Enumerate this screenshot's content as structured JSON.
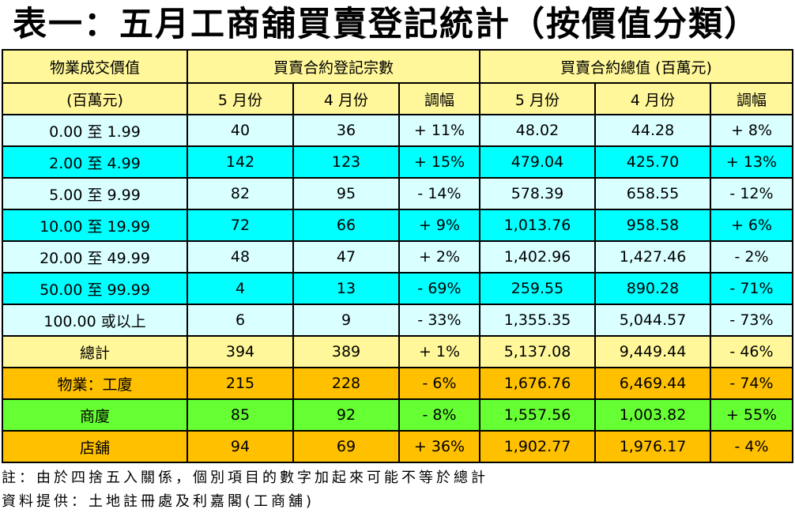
{
  "title": "表一：五月工商舖買賣登記統計（按價值分類）",
  "header": {
    "col1_line1": "物業成交價值",
    "col1_line2": "(百萬元)",
    "group_count": "買賣合約登記宗數",
    "group_value": "買賣合約總值 (百萬元)",
    "may": "5 月份",
    "apr": "4 月份",
    "change": "調幅"
  },
  "rows": [
    {
      "label": "0.00 至 1.99",
      "count_may": "40",
      "count_apr": "36",
      "count_chg": "+ 11%",
      "val_may": "48.02",
      "val_apr": "44.28",
      "val_chg": "+ 8%"
    },
    {
      "label": "2.00 至 4.99",
      "count_may": "142",
      "count_apr": "123",
      "count_chg": "+ 15%",
      "val_may": "479.04",
      "val_apr": "425.70",
      "val_chg": "+ 13%"
    },
    {
      "label": "5.00 至 9.99",
      "count_may": "82",
      "count_apr": "95",
      "count_chg": "- 14%",
      "val_may": "578.39",
      "val_apr": "658.55",
      "val_chg": "- 12%"
    },
    {
      "label": "10.00 至 19.99",
      "count_may": "72",
      "count_apr": "66",
      "count_chg": "+ 9%",
      "val_may": "1,013.76",
      "val_apr": "958.58",
      "val_chg": "+ 6%"
    },
    {
      "label": "20.00 至 49.99",
      "count_may": "48",
      "count_apr": "47",
      "count_chg": "+ 2%",
      "val_may": "1,402.96",
      "val_apr": "1,427.46",
      "val_chg": "- 2%"
    },
    {
      "label": "50.00 至 99.99",
      "count_may": "4",
      "count_apr": "13",
      "count_chg": "- 69%",
      "val_may": "259.55",
      "val_apr": "890.28",
      "val_chg": "- 71%"
    },
    {
      "label": "100.00 或以上",
      "count_may": "6",
      "count_apr": "9",
      "count_chg": "- 33%",
      "val_may": "1,355.35",
      "val_apr": "5,044.57",
      "val_chg": "- 73%"
    }
  ],
  "total": {
    "label": "總計",
    "count_may": "394",
    "count_apr": "389",
    "count_chg": "+ 1%",
    "val_may": "5,137.08",
    "val_apr": "9,449.44",
    "val_chg": "- 46%"
  },
  "by_type": [
    {
      "label": "物業：工廈",
      "count_may": "215",
      "count_apr": "228",
      "count_chg": "- 6%",
      "val_may": "1,676.76",
      "val_apr": "6,469.44",
      "val_chg": "- 74%"
    },
    {
      "label": "商廈",
      "count_may": "85",
      "count_apr": "92",
      "count_chg": "- 8%",
      "val_may": "1,557.56",
      "val_apr": "1,003.82",
      "val_chg": "+ 55%"
    },
    {
      "label": "店舖",
      "count_may": "94",
      "count_apr": "69",
      "count_chg": "+ 36%",
      "val_may": "1,902.77",
      "val_apr": "1,976.17",
      "val_chg": "- 4%"
    }
  ],
  "notes": {
    "note": "註：由於四捨五入關係，個別項目的數字加起來可能不等於總計",
    "source": "資料提供：土地註冊處及利嘉閣(工商舖)"
  },
  "colors": {
    "header": "#fff799",
    "row_light": "#d9ffff",
    "row_cyan": "#00ffff",
    "total": "#fff799",
    "industrial": "#ffc000",
    "commercial": "#66ff33",
    "shop": "#ffc000"
  }
}
